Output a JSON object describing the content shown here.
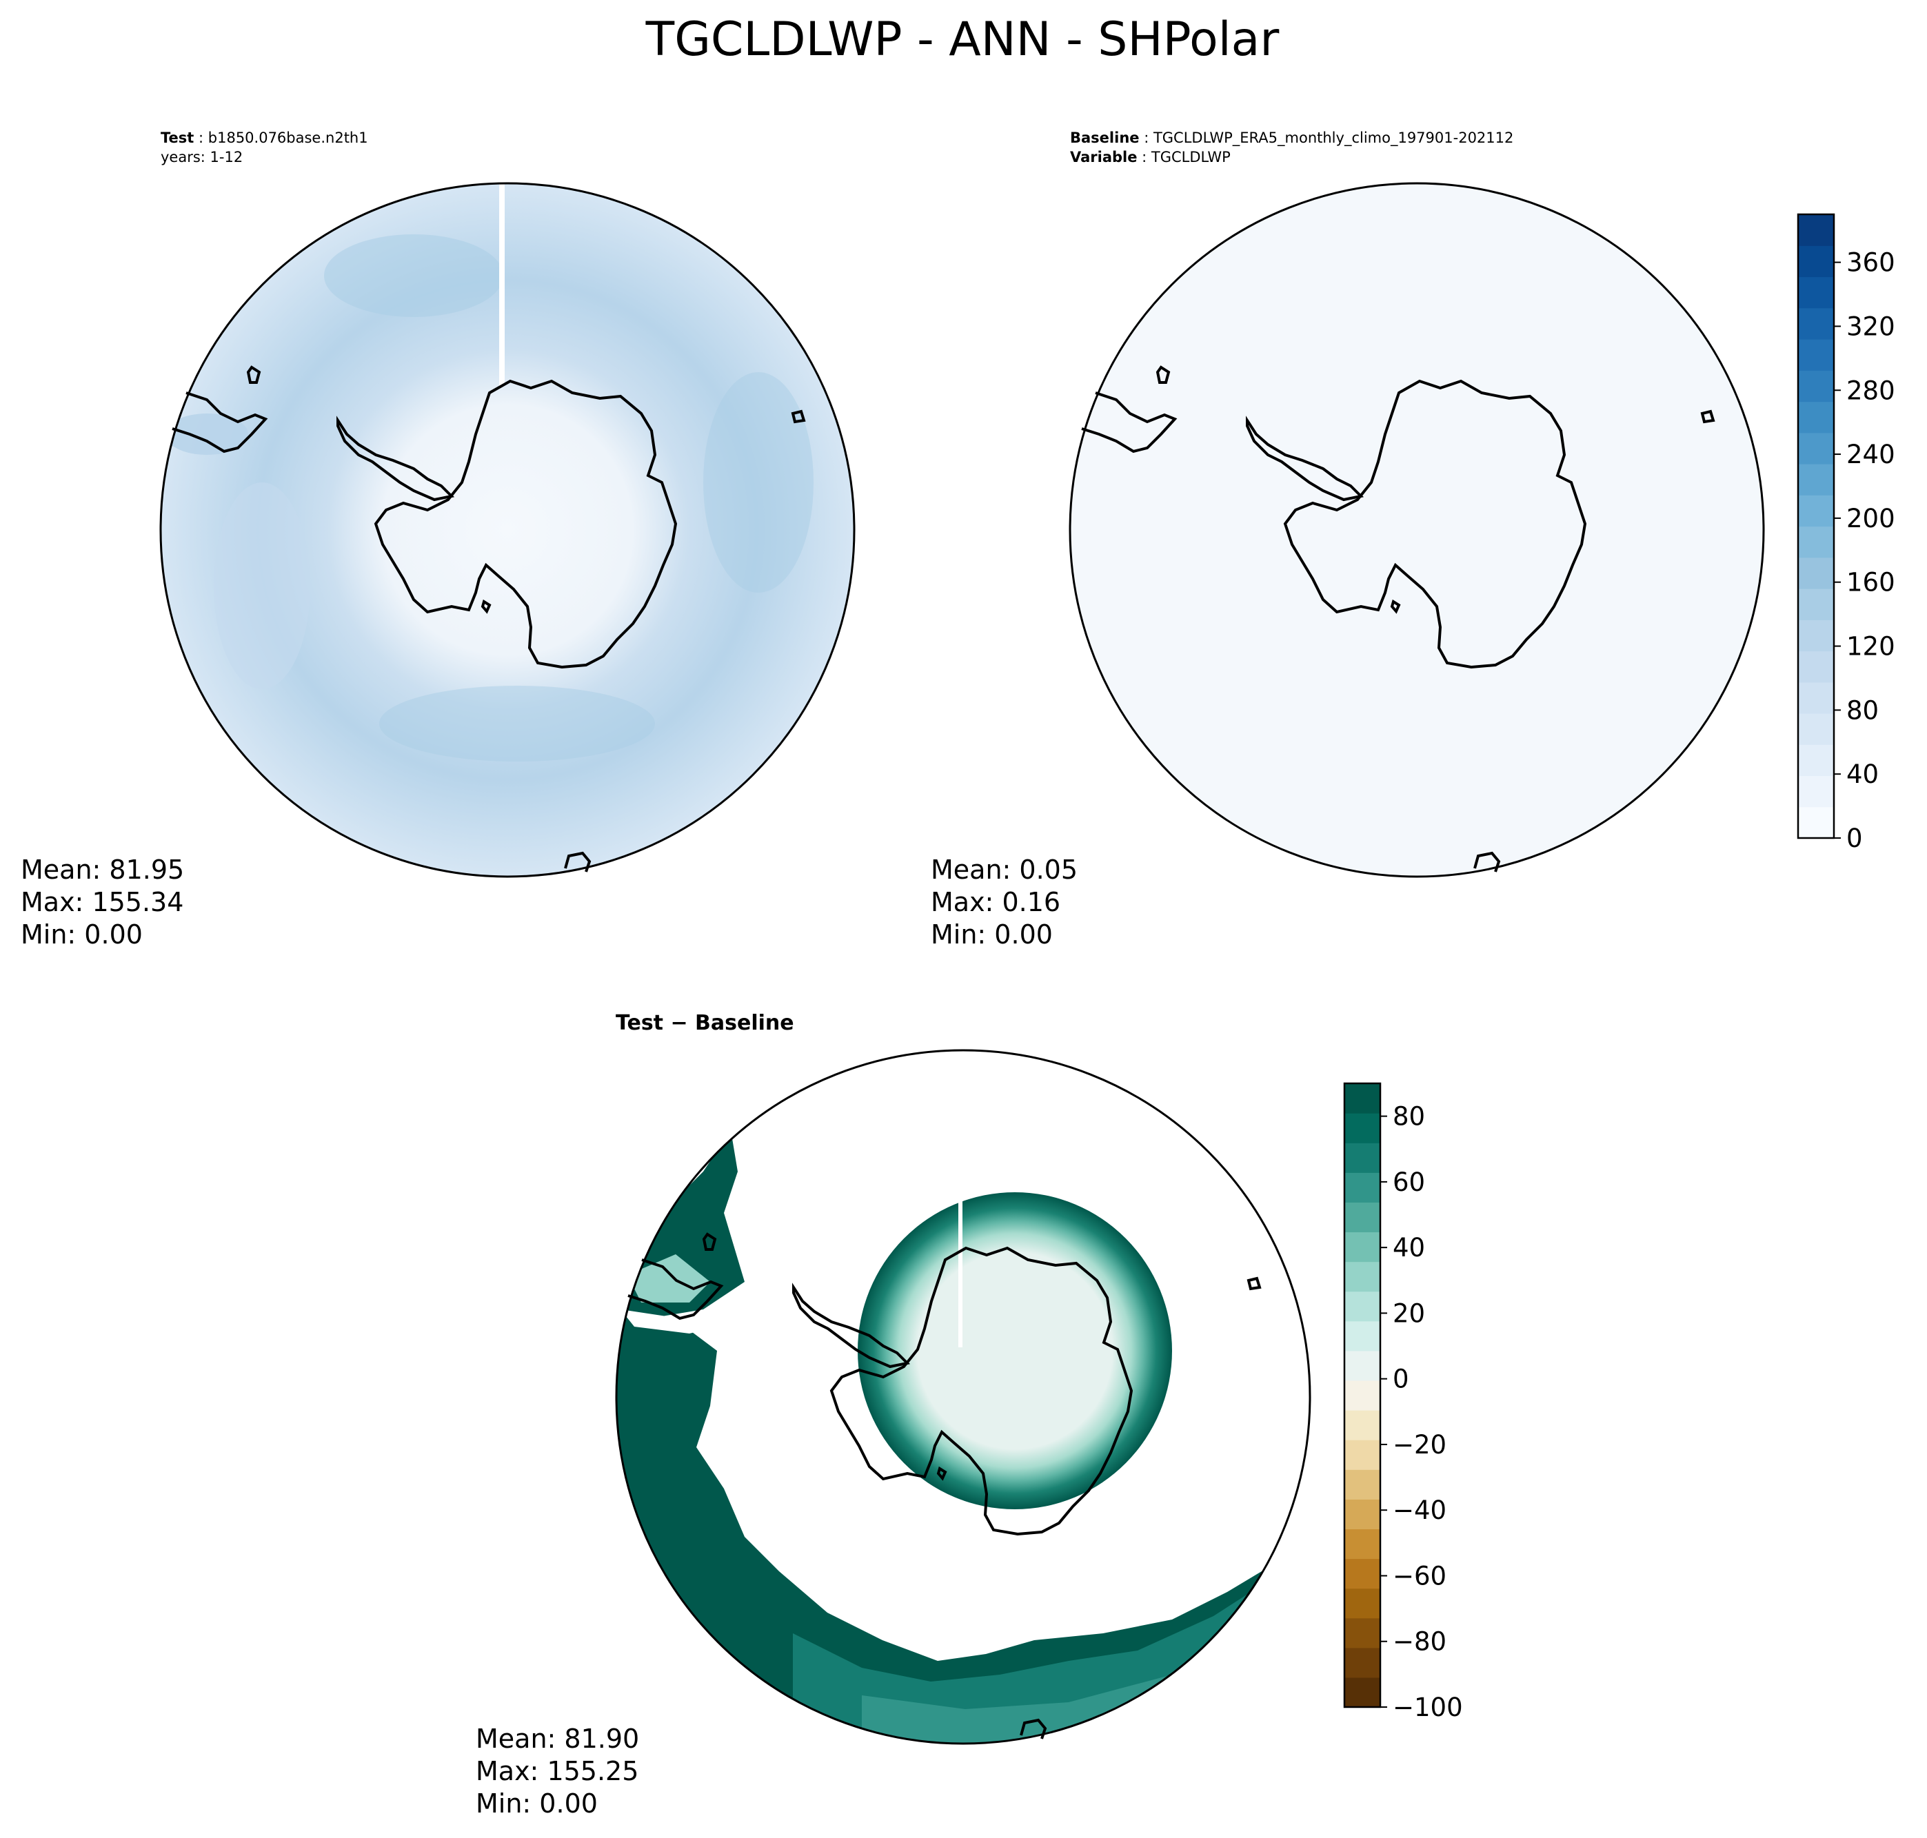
{
  "figure": {
    "title": "TGCLDLWP - ANN - SHPolar"
  },
  "panels": {
    "test": {
      "label_key": "Test",
      "label_value": "b1850.076base.n2th1",
      "line2": "years: 1-12",
      "stats": {
        "mean": "Mean: 81.95",
        "max": "Max: 155.34",
        "min": "Min:  0.00"
      }
    },
    "baseline": {
      "label_key": "Baseline",
      "label_value": "TGCLDLWP_ERA5_monthly_climo_197901-202112",
      "line2_key": "Variable",
      "line2_value": "TGCLDLWP",
      "stats": {
        "mean": "Mean:  0.05",
        "max": "Max:  0.16",
        "min": "Min:  0.00"
      }
    },
    "diff": {
      "title": "Test − Baseline",
      "stats": {
        "mean": "Mean: 81.90",
        "max": "Max: 155.25",
        "min": "Min:  0.00"
      }
    }
  },
  "colorbars": {
    "blues": {
      "ticks": [
        "0",
        "40",
        "80",
        "120",
        "160",
        "200",
        "240",
        "280",
        "320",
        "360"
      ],
      "tick_values": [
        0,
        40,
        80,
        120,
        160,
        200,
        240,
        280,
        320,
        360
      ],
      "range": [
        0,
        390
      ],
      "colors": [
        "#f7fbff",
        "#edf4fc",
        "#e3eef9",
        "#d8e7f5",
        "#cfe1f2",
        "#c4daee",
        "#b8d4ea",
        "#a9cde5",
        "#98c3df",
        "#85bcdc",
        "#72b2d8",
        "#5fa6d1",
        "#4d99ca",
        "#3d8dc3",
        "#2f7fbc",
        "#2372b5",
        "#1865ab",
        "#0e579f",
        "#084a91",
        "#083d80"
      ]
    },
    "brbg": {
      "ticks": [
        "80",
        "60",
        "40",
        "20",
        "0",
        "−20",
        "−40",
        "−60",
        "−80",
        "−100"
      ],
      "tick_values": [
        80,
        60,
        40,
        20,
        0,
        -20,
        -40,
        -60,
        -80,
        -100
      ],
      "range": [
        -100,
        90
      ],
      "colors": [
        "#573006",
        "#6f4009",
        "#87520c",
        "#a0660f",
        "#b7781d",
        "#c88f33",
        "#d6a957",
        "#e2c17d",
        "#efd9a8",
        "#f3e8c6",
        "#f6f2e6",
        "#e9f3f1",
        "#d2eeea",
        "#b5e2db",
        "#95d3c8",
        "#74c1b3",
        "#50aa9c",
        "#31958a",
        "#157d72",
        "#036b5e",
        "#01584c"
      ]
    }
  },
  "icons": {
    "coastline": "antarctica-coastline-icon"
  }
}
